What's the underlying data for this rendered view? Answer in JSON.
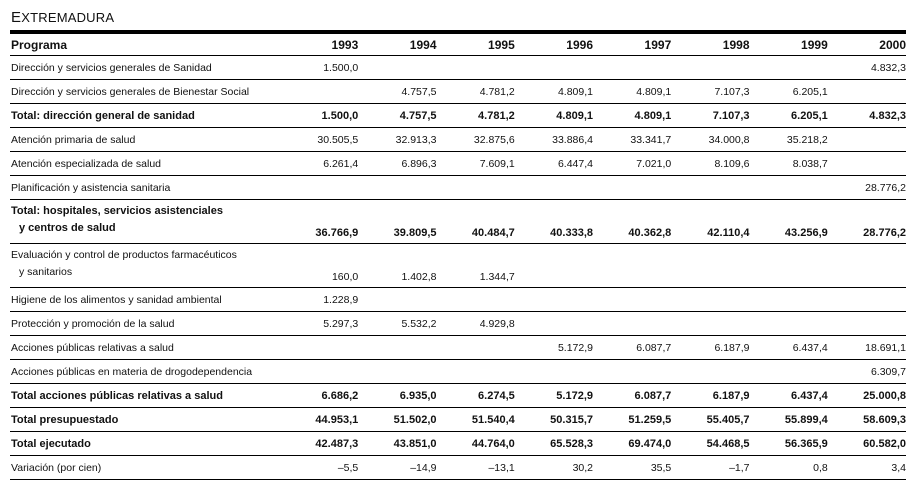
{
  "title": "Extremadura",
  "columns": [
    "Programa",
    "1993",
    "1994",
    "1995",
    "1996",
    "1997",
    "1998",
    "1999",
    "2000"
  ],
  "rows": [
    {
      "label": [
        "Dirección y servicios generales de Sanidad"
      ],
      "bold": false,
      "values": [
        "1.500,0",
        "",
        "",
        "",
        "",
        "",
        "",
        "4.832,3"
      ]
    },
    {
      "label": [
        "Dirección y servicios generales de Bienestar Social"
      ],
      "bold": false,
      "values": [
        "",
        "4.757,5",
        "4.781,2",
        "4.809,1",
        "4.809,1",
        "7.107,3",
        "6.205,1",
        ""
      ]
    },
    {
      "label": [
        "Total: dirección general de sanidad"
      ],
      "bold": true,
      "values": [
        "1.500,0",
        "4.757,5",
        "4.781,2",
        "4.809,1",
        "4.809,1",
        "7.107,3",
        "6.205,1",
        "4.832,3"
      ]
    },
    {
      "label": [
        "Atención primaria de salud"
      ],
      "bold": false,
      "values": [
        "30.505,5",
        "32.913,3",
        "32.875,6",
        "33.886,4",
        "33.341,7",
        "34.000,8",
        "35.218,2",
        ""
      ]
    },
    {
      "label": [
        "Atención especializada de salud"
      ],
      "bold": false,
      "values": [
        "6.261,4",
        "6.896,3",
        "7.609,1",
        "6.447,4",
        "7.021,0",
        "8.109,6",
        "8.038,7",
        ""
      ]
    },
    {
      "label": [
        "Planificación y asistencia sanitaria"
      ],
      "bold": false,
      "values": [
        "",
        "",
        "",
        "",
        "",
        "",
        "",
        "28.776,2"
      ]
    },
    {
      "label": [
        "Total: hospitales, servicios asistenciales",
        "y centros de salud"
      ],
      "bold": true,
      "values": [
        "36.766,9",
        "39.809,5",
        "40.484,7",
        "40.333,8",
        "40.362,8",
        "42.110,4",
        "43.256,9",
        "28.776,2"
      ]
    },
    {
      "label": [
        "Evaluación y control de productos farmacéuticos",
        "y sanitarios"
      ],
      "bold": false,
      "values": [
        "160,0",
        "1.402,8",
        "1.344,7",
        "",
        "",
        "",
        "",
        ""
      ]
    },
    {
      "label": [
        "Higiene de los alimentos y sanidad ambiental"
      ],
      "bold": false,
      "values": [
        "1.228,9",
        "",
        "",
        "",
        "",
        "",
        "",
        ""
      ]
    },
    {
      "label": [
        "Protección y promoción de la salud"
      ],
      "bold": false,
      "values": [
        "5.297,3",
        "5.532,2",
        "4.929,8",
        "",
        "",
        "",
        "",
        ""
      ]
    },
    {
      "label": [
        "Acciones públicas relativas a salud"
      ],
      "bold": false,
      "values": [
        "",
        "",
        "",
        "5.172,9",
        "6.087,7",
        "6.187,9",
        "6.437,4",
        "18.691,1"
      ]
    },
    {
      "label": [
        "Acciones públicas en materia de drogodependencia"
      ],
      "bold": false,
      "values": [
        "",
        "",
        "",
        "",
        "",
        "",
        "",
        "6.309,7"
      ]
    },
    {
      "label": [
        "Total acciones públicas relativas a salud"
      ],
      "bold": true,
      "values": [
        "6.686,2",
        "6.935,0",
        "6.274,5",
        "5.172,9",
        "6.087,7",
        "6.187,9",
        "6.437,4",
        "25.000,8"
      ]
    },
    {
      "label": [
        "Total presupuestado"
      ],
      "bold": true,
      "values": [
        "44.953,1",
        "51.502,0",
        "51.540,4",
        "50.315,7",
        "51.259,5",
        "55.405,7",
        "55.899,4",
        "58.609,3"
      ]
    },
    {
      "label": [
        "Total ejecutado"
      ],
      "bold": true,
      "values": [
        "42.487,3",
        "43.851,0",
        "44.764,0",
        "65.528,3",
        "69.474,0",
        "54.468,5",
        "56.365,9",
        "60.582,0"
      ]
    },
    {
      "label": [
        "Variación (por cien)"
      ],
      "bold": false,
      "values": [
        "–5,5",
        "–14,9",
        "–13,1",
        "30,2",
        "35,5",
        "–1,7",
        "0,8",
        "3,4"
      ]
    }
  ]
}
